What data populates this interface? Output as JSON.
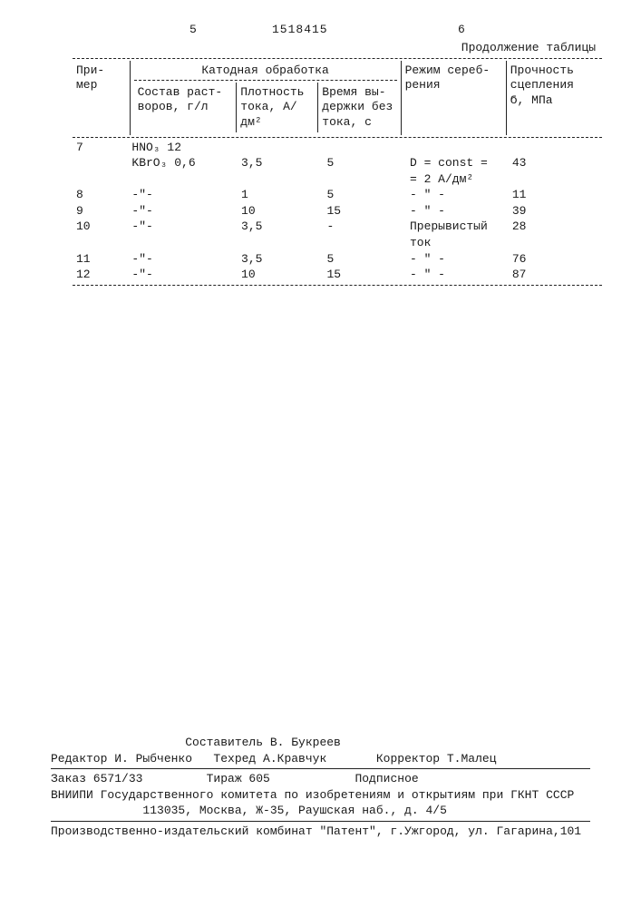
{
  "header": {
    "col_left": "5",
    "doc_number": "1518415",
    "col_right": "6",
    "continuation": "Продолжение таблицы"
  },
  "table": {
    "columns": {
      "c1": "При-\nмер",
      "group": "Катодная обработка",
      "c2": "Состав раст-\nворов, г/л",
      "c3": "Плотность\nтока, А/дм²",
      "c4": "Время вы-\nдержки без\nтока, с",
      "c5": "Режим сереб-\nрения",
      "c6": "Прочность\nсцепления\nϬ, МПа"
    },
    "rows": [
      {
        "n": "7",
        "comp": "HNO₃  12",
        "dens": "",
        "time": "",
        "mode": "",
        "str": ""
      },
      {
        "n": "",
        "comp": "KBrO₃ 0,6",
        "dens": "3,5",
        "time": "5",
        "mode": "D = const =",
        "str": "43"
      },
      {
        "n": "",
        "comp": "",
        "dens": "",
        "time": "",
        "mode": "= 2 А/дм²",
        "str": ""
      },
      {
        "n": "8",
        "comp": "-\"-",
        "dens": "1",
        "time": "5",
        "mode": "- \" -",
        "str": "11"
      },
      {
        "n": "9",
        "comp": "-\"-",
        "dens": "10",
        "time": "15",
        "mode": "- \" -",
        "str": "39"
      },
      {
        "n": "10",
        "comp": "-\"-",
        "dens": "3,5",
        "time": "-",
        "mode": "Прерывистый",
        "str": "28"
      },
      {
        "n": "",
        "comp": "",
        "dens": "",
        "time": "",
        "mode": "ток",
        "str": ""
      },
      {
        "n": "11",
        "comp": "-\"-",
        "dens": "3,5",
        "time": "5",
        "mode": "- \" -",
        "str": "76"
      },
      {
        "n": "12",
        "comp": "-\"-",
        "dens": "10",
        "time": "15",
        "mode": "- \" -",
        "str": "87"
      }
    ]
  },
  "credits": {
    "line1": "                   Составитель В. Букреев",
    "line2": "Редактор И. Рыбченко   Техред А.Кравчук       Корректор Т.Малец",
    "line3": "Заказ 6571/33         Тираж 605            Подписное",
    "line4": "ВНИИПИ Государственного комитета по изобретениям и открытиям при ГКНТ СССР",
    "line5": "             113035, Москва, Ж-35, Раушская наб., д. 4/5",
    "line6": "Производственно-издательский комбинат \"Патент\", г.Ужгород, ул. Гагарина,101"
  }
}
